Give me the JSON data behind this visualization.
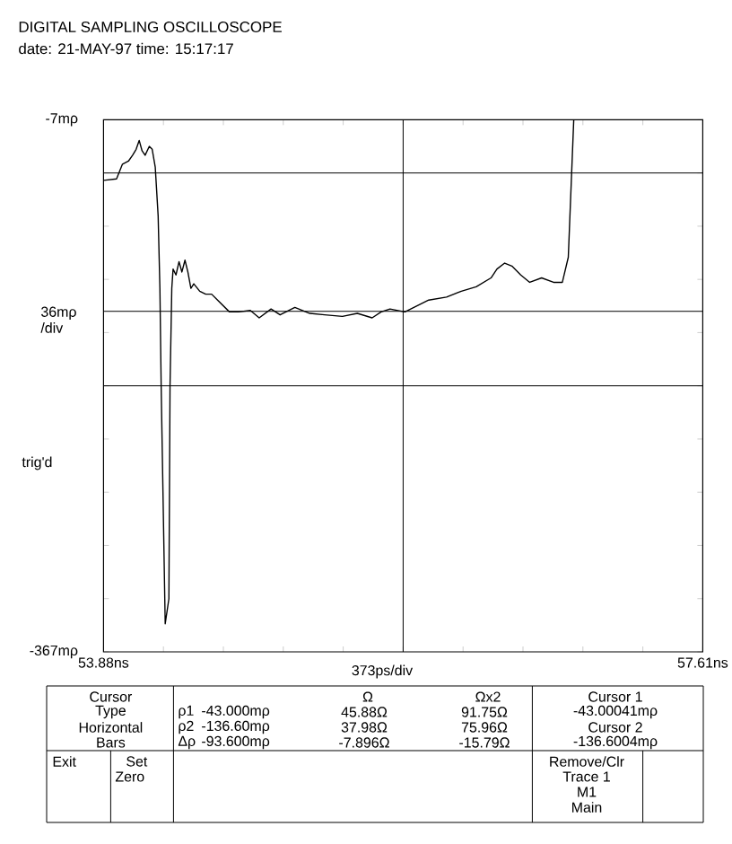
{
  "chart_data": {
    "type": "line",
    "title": "DIGITAL SAMPLING OSCILLOSCOPE",
    "subtitle": "date: 21-MAY-97 time: 15:17:17",
    "color": "#000000",
    "x": [
      53.88,
      53.961,
      53.998,
      54.035,
      54.061,
      54.083,
      54.102,
      54.12,
      54.139,
      54.165,
      54.183,
      54.202,
      54.22,
      54.231,
      54.239,
      54.264,
      54.287,
      54.294,
      54.305,
      54.313,
      54.331,
      54.35,
      54.368,
      54.387,
      54.405,
      54.424,
      54.442,
      54.479,
      54.516,
      54.553,
      54.59,
      54.627,
      54.664,
      54.72,
      54.794,
      54.849,
      54.923,
      54.979,
      55.071,
      55.164,
      55.256,
      55.367,
      55.46,
      55.552,
      55.608,
      55.663,
      55.756,
      55.83,
      55.904,
      56.015,
      56.107,
      56.2,
      56.292,
      56.329,
      56.377,
      56.422,
      56.477,
      56.533,
      56.607,
      56.681,
      56.736,
      56.773,
      56.792,
      56.807
    ],
    "values": [
      -48,
      -47,
      -37,
      -35,
      -31,
      -27,
      -21,
      -28,
      -31,
      -25,
      -27,
      -39,
      -72,
      -121,
      -188,
      -348,
      -331,
      -187,
      -121,
      -108,
      -112,
      -103,
      -110,
      -102,
      -110,
      -121,
      -118,
      -123,
      -125,
      -125,
      -129,
      -133,
      -137,
      -137,
      -136,
      -141,
      -135,
      -139,
      -134,
      -138,
      -139,
      -140,
      -138,
      -141,
      -137,
      -135,
      -137,
      -133,
      -129,
      -127,
      -123,
      -120,
      -114,
      -108,
      -104,
      -106,
      -112,
      -117,
      -114,
      -117,
      -117,
      -100,
      -48,
      -7
    ],
    "xlim": [
      53.88,
      57.61
    ],
    "ylim": [
      -367,
      -7
    ],
    "xticks": [
      {
        "value": 53.88,
        "label": "53.88ns"
      },
      {
        "value": 54.253,
        "label": null
      },
      {
        "value": 54.626,
        "label": null
      },
      {
        "value": 54.999,
        "label": null
      },
      {
        "value": 55.372,
        "label": null
      },
      {
        "value": 55.745,
        "label": null
      },
      {
        "value": 56.118,
        "label": null
      },
      {
        "value": 56.491,
        "label": null
      },
      {
        "value": 56.864,
        "label": null
      },
      {
        "value": 57.237,
        "label": null
      },
      {
        "value": 57.61,
        "label": "57.61ns"
      }
    ],
    "yticks": [
      {
        "value": -367,
        "label": "-367mρ"
      },
      {
        "value": -331,
        "label": null
      },
      {
        "value": -295,
        "label": null
      },
      {
        "value": -259,
        "label": null
      },
      {
        "value": -223,
        "label": null
      },
      {
        "value": -187,
        "label": null
      },
      {
        "value": -151,
        "label": null
      },
      {
        "value": -115,
        "label": null
      },
      {
        "value": -79,
        "label": null
      },
      {
        "value": -43,
        "label": null
      },
      {
        "value": -7,
        "label": "-7mρ"
      }
    ],
    "ref_lines": [
      {
        "axis": "y",
        "value": -43
      },
      {
        "axis": "y",
        "value": -136.6
      },
      {
        "axis": "x",
        "value": 55.745
      },
      {
        "axis": "y",
        "value": -187
      }
    ],
    "ylabel": "36mρ /div",
    "annotations": [
      "trig'd",
      "Cursor",
      "Type",
      "Horizontal",
      "Bars",
      "ρ1",
      "ρ2",
      "Δρ",
      "-43.000mρ",
      "-136.60mρ",
      "-93.600mρ",
      "Ω",
      "45.88Ω",
      "37.98Ω",
      "-7.896Ω",
      "Ωx2",
      "91.75Ω",
      "75.96Ω",
      "-15.79Ω",
      "Cursor 1",
      "-43.00041mρ",
      "Cursor 2",
      "-136.6004mρ",
      "Exit",
      "Set",
      "Zero",
      "Remove/Clr",
      "Trace 1",
      "M1",
      "Main",
      "373ps/div"
    ]
  }
}
